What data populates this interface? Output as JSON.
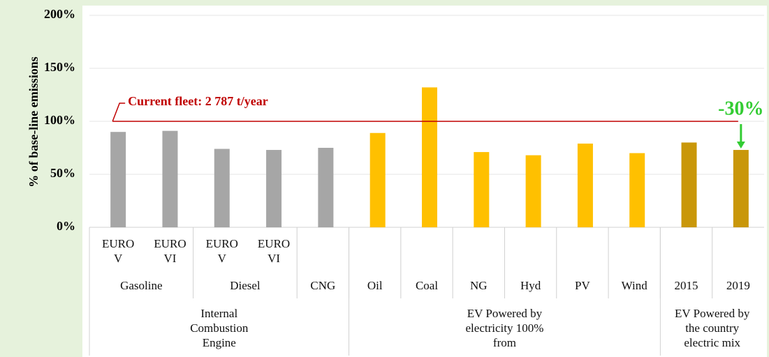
{
  "chart_data": {
    "type": "bar",
    "y_label": "% of base-line emissions",
    "categories": [
      "EURO V",
      "EURO VI",
      "EURO V",
      "EURO VI",
      null,
      null,
      null,
      null,
      null,
      null,
      null,
      null,
      null
    ],
    "groups": [
      {
        "label": "Gasoline",
        "count": 2
      },
      {
        "label": "Diesel",
        "count": 2
      },
      {
        "label": "CNG",
        "count": 1
      },
      {
        "label": "Oil",
        "count": 1
      },
      {
        "label": "Coal",
        "count": 1
      },
      {
        "label": "NG",
        "count": 1
      },
      {
        "label": "Hyd",
        "count": 1
      },
      {
        "label": "PV",
        "count": 1
      },
      {
        "label": "Wind",
        "count": 1
      },
      {
        "label": "2015",
        "count": 1
      },
      {
        "label": "2019",
        "count": 1
      }
    ],
    "supergroups": [
      {
        "label": "Internal Combustion Engine",
        "count": 5
      },
      {
        "label": "EV Powered by electricity 100% from",
        "count": 6
      },
      {
        "label": "EV Powered by the country electric mix",
        "count": 2
      }
    ],
    "values": [
      90,
      91,
      74,
      73,
      75,
      89,
      132,
      71,
      68,
      79,
      70,
      80,
      73
    ],
    "colors": [
      "#a6a6a6",
      "#a6a6a6",
      "#a6a6a6",
      "#a6a6a6",
      "#a6a6a6",
      "#ffc000",
      "#ffc000",
      "#ffc000",
      "#ffc000",
      "#ffc000",
      "#ffc000",
      "#c9970a",
      "#c9970a"
    ],
    "ylim": [
      0,
      200
    ],
    "yticks": [
      {
        "value": 0,
        "label": "0%"
      },
      {
        "value": 50,
        "label": "50%"
      },
      {
        "value": 100,
        "label": "100%"
      },
      {
        "value": 150,
        "label": "150%"
      },
      {
        "value": 200,
        "label": "200%"
      }
    ],
    "grid": true,
    "reference_line": {
      "value": 100,
      "label": "Current fleet: 2 787 t/year",
      "color": "#c00000"
    },
    "annotation": {
      "label": "-30%",
      "color": "#33cc33"
    }
  }
}
